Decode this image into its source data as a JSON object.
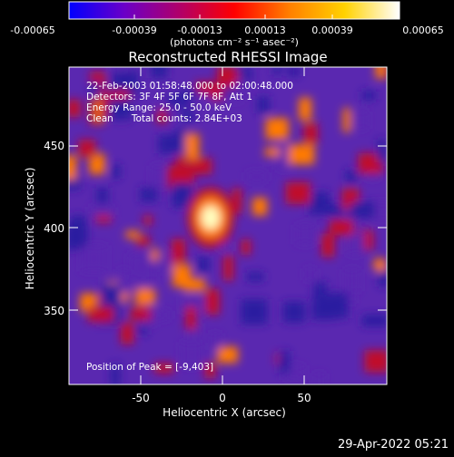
{
  "colorbar": {
    "tick_labels": [
      "-0.00065",
      "-0.00039",
      "-0.00013",
      "0.00013",
      "0.00039",
      "0.00065"
    ],
    "units_label": "(photons cm⁻² s⁻¹ asec⁻²)",
    "gradient_colors": [
      "#0000ff",
      "#6a00c8",
      "#b0006a",
      "#ff0000",
      "#ff7f00",
      "#ffd200",
      "#ffffff"
    ]
  },
  "title": "Reconstructed RHESSI Image",
  "info_lines": [
    "22-Feb-2003 01:58:48.000 to 02:00:48.000",
    "Detectors: 3F 4F 5F 6F 7F 8F, Att 1",
    "Energy Range: 25.0 - 50.0 keV",
    "Clean      Total counts: 2.84E+03"
  ],
  "peak_text": "Position of Peak = [-9,403]",
  "x_axis": {
    "label": "Heliocentric X (arcsec)",
    "tick_labels": [
      "-50",
      "0",
      "50"
    ]
  },
  "y_axis": {
    "label": "Heliocentric Y (arcsec)",
    "tick_labels": [
      "350",
      "400",
      "450"
    ]
  },
  "footer_timestamp": "29-Apr-2022 05:21",
  "image_palette": {
    "background": "#000000",
    "low": "#2b1fa0",
    "mid": "#5a28b0",
    "warm": "#c0102a",
    "hot": "#ff7a00",
    "peak": "#ffffc0"
  }
}
